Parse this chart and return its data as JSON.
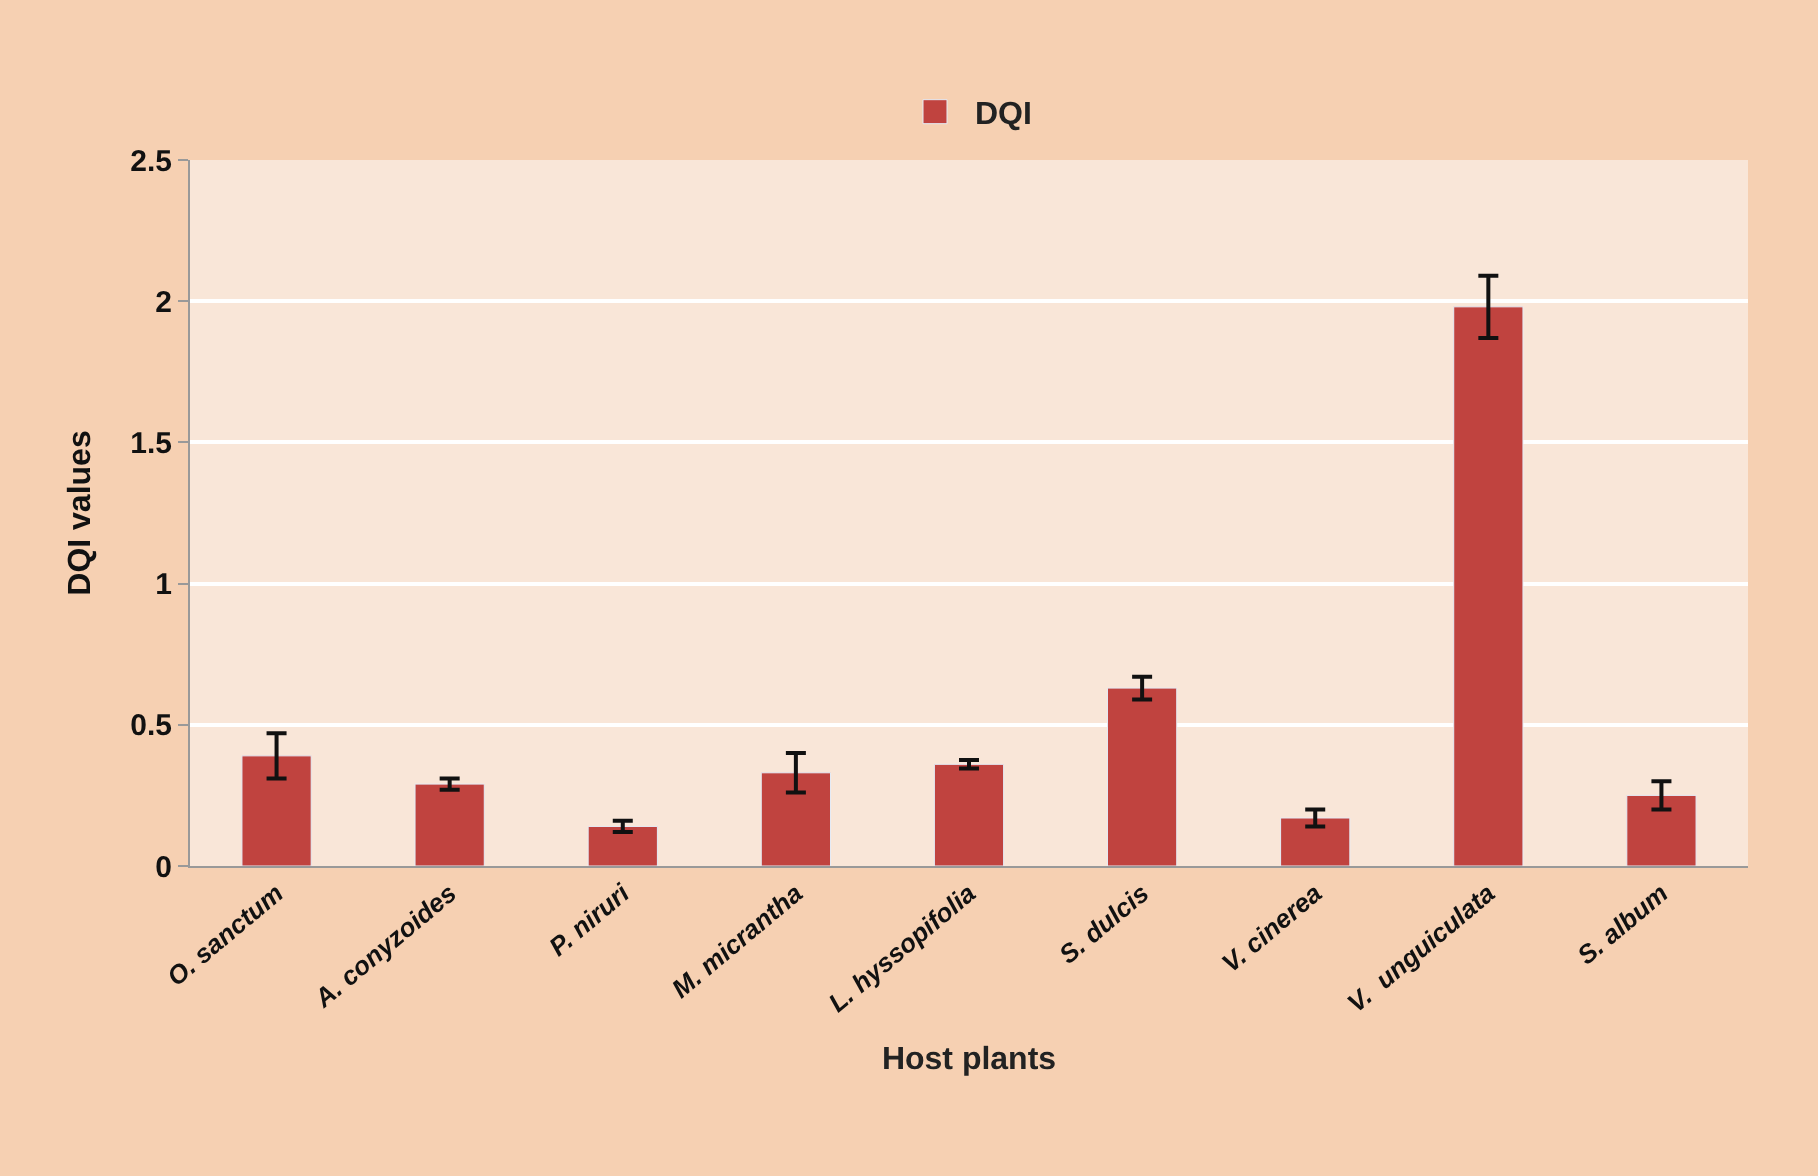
{
  "chart_data": {
    "type": "bar",
    "xlabel": "Host plants",
    "ylabel": "DQI values",
    "categories": [
      "O. sanctum",
      "A. conyzoides",
      "P. niruri",
      "M. micrantha",
      "L. hyssopifolia",
      "S. dulcis",
      "V. cinerea",
      "V.  unguiculata",
      "S. album"
    ],
    "series": [
      {
        "name": "DQI",
        "color": "#c0433f",
        "values": [
          0.39,
          0.29,
          0.14,
          0.33,
          0.36,
          0.63,
          0.17,
          1.98,
          0.25
        ],
        "errors": [
          0.08,
          0.02,
          0.02,
          0.07,
          0.015,
          0.04,
          0.03,
          0.11,
          0.05
        ]
      }
    ],
    "ylim": [
      0,
      2.5
    ],
    "yticks": [
      0,
      0.5,
      1,
      1.5,
      2,
      2.5
    ],
    "grid": "y",
    "legend": "top"
  }
}
